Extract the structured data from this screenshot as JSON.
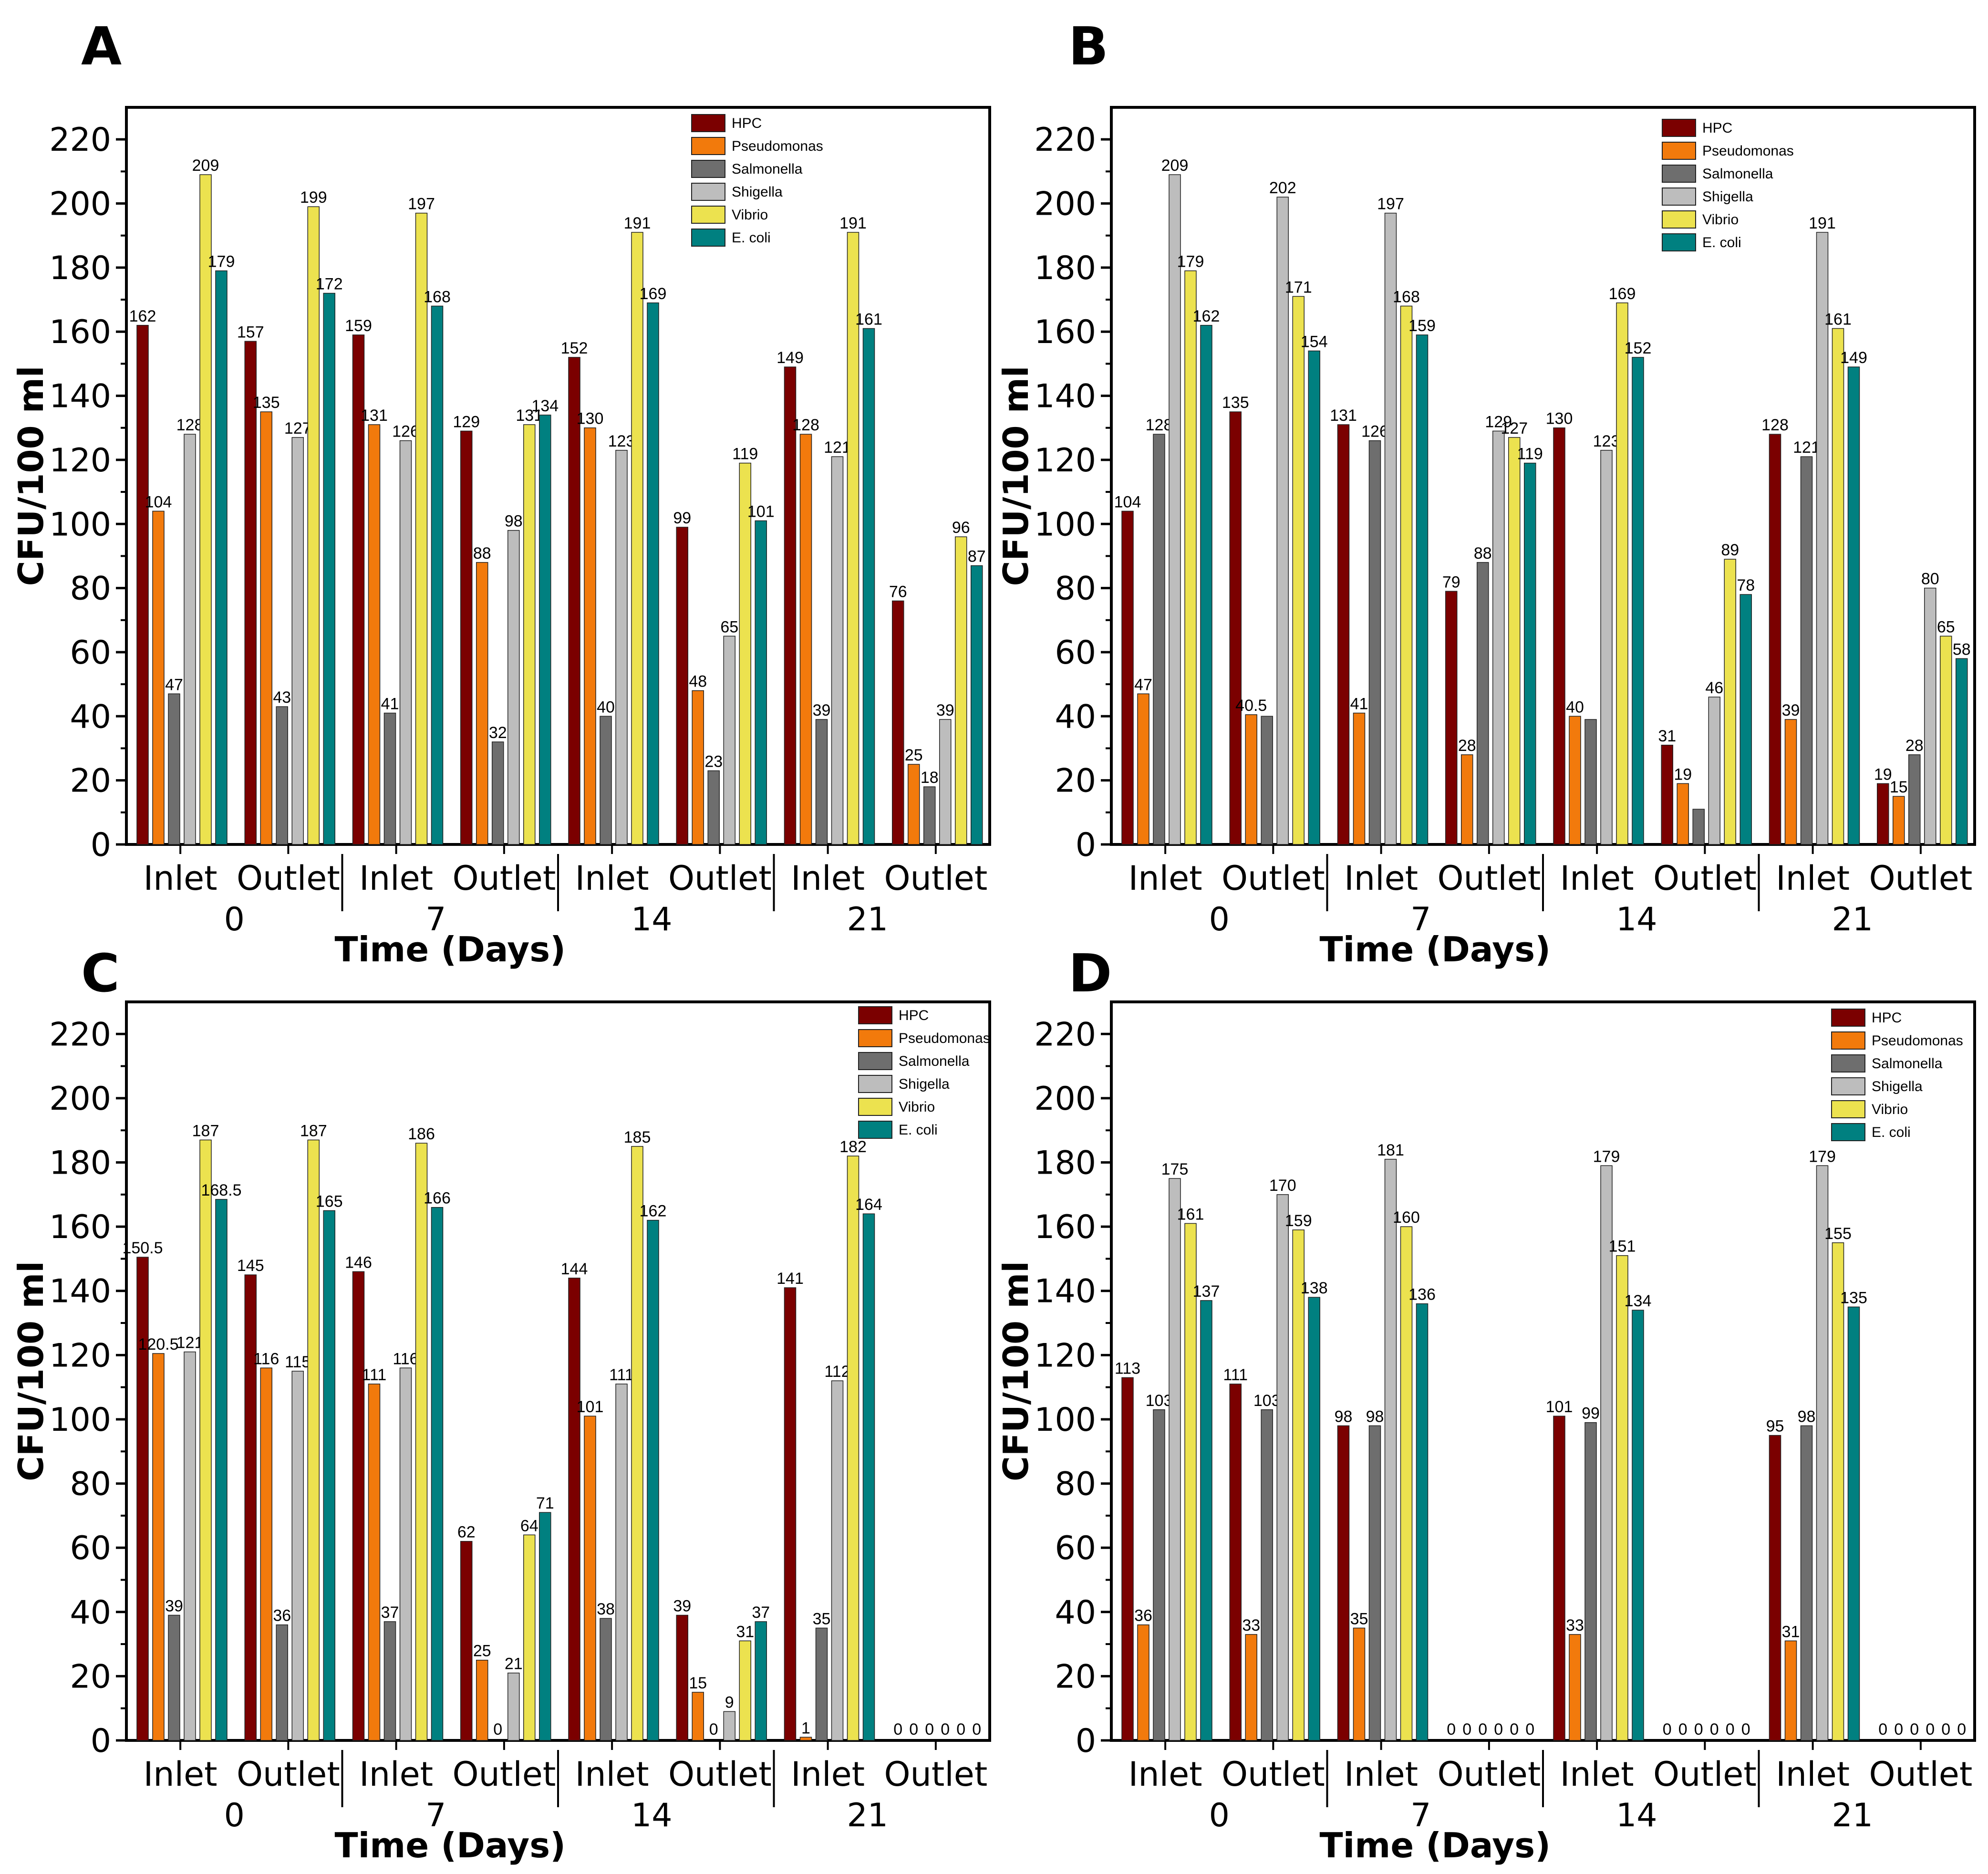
{
  "figure": {
    "xlabel": "Time (Days)",
    "ylabel": "CFU/100 ml",
    "groups": [
      "Inlet",
      "Outlet",
      "Inlet",
      "Outlet",
      "Inlet",
      "Outlet",
      "Inlet",
      "Outlet"
    ],
    "days": [
      "0",
      "7",
      "14",
      "21"
    ],
    "yticks": [
      "0",
      "20",
      "40",
      "60",
      "80",
      "100",
      "120",
      "140",
      "160",
      "180",
      "200",
      "220"
    ]
  },
  "colors": {
    "HPC": "#7b0000",
    "Pseudomonas": "#f27a0c",
    "Salmonella": "#6e6e6e",
    "Shigella": "#bdbdbd",
    "Vibrio": "#ece24f",
    "E. coli": "#008080"
  },
  "chart_data": [
    {
      "type": "bar",
      "panel": "A",
      "title": "",
      "xlabel": "Time (Days)",
      "ylabel": "CFU/100 ml",
      "ylim": [
        0,
        230
      ],
      "categories": [
        "0 Inlet",
        "0 Outlet",
        "7 Inlet",
        "7 Outlet",
        "14 Inlet",
        "14 Outlet",
        "21 Inlet",
        "21 Outlet"
      ],
      "series": [
        {
          "name": "HPC",
          "values": [
            162,
            157,
            159,
            129,
            152,
            99,
            149,
            76
          ],
          "labels": [
            "162",
            "157",
            "159",
            "129",
            "152",
            "99",
            "149",
            "76"
          ]
        },
        {
          "name": "Pseudomonas",
          "values": [
            104,
            135,
            131,
            88,
            130,
            48,
            128,
            25
          ],
          "labels": [
            "104",
            "135",
            "131",
            "88",
            "130",
            "48",
            "128",
            "25"
          ]
        },
        {
          "name": "Salmonella",
          "values": [
            47,
            43,
            41,
            32,
            40,
            23,
            39,
            18
          ],
          "labels": [
            "47",
            "43",
            "41",
            "32",
            "40",
            "23",
            "39",
            "18"
          ]
        },
        {
          "name": "Shigella",
          "values": [
            128,
            127,
            126,
            98,
            123,
            65,
            121,
            39
          ],
          "labels": [
            "128",
            "127",
            "126",
            "98",
            "123",
            "65",
            "121",
            "39"
          ]
        },
        {
          "name": "Vibrio",
          "values": [
            209,
            199,
            197,
            131,
            191,
            119,
            191,
            96
          ],
          "labels": [
            "209",
            "199",
            "197",
            "131",
            "191",
            "119",
            "191",
            "96"
          ]
        },
        {
          "name": "E. coli",
          "values": [
            179,
            172,
            168,
            134,
            169,
            101,
            161,
            87
          ],
          "labels": [
            "179",
            "172",
            "168",
            "134",
            "169",
            "101",
            "161",
            "87"
          ]
        }
      ]
    },
    {
      "type": "bar",
      "panel": "B",
      "title": "",
      "xlabel": "Time (Days)",
      "ylabel": "CFU/100 ml",
      "ylim": [
        0,
        230
      ],
      "categories": [
        "0 Inlet",
        "0 Outlet",
        "7 Inlet",
        "7 Outlet",
        "14 Inlet",
        "14 Outlet",
        "21 Inlet",
        "21 Outlet"
      ],
      "series": [
        {
          "name": "HPC",
          "values": [
            104,
            135,
            131,
            79,
            130,
            31,
            128,
            19
          ],
          "labels": [
            "104",
            "135",
            "131",
            "79",
            "130",
            "31",
            "128",
            "19"
          ]
        },
        {
          "name": "Pseudomonas",
          "values": [
            47,
            40.5,
            41,
            28,
            40,
            19,
            39,
            15
          ],
          "labels": [
            "47",
            "40.5",
            "41",
            "28",
            "40",
            "19",
            "39",
            "15"
          ]
        },
        {
          "name": "Salmonella",
          "values": [
            128,
            40,
            126,
            88,
            39,
            11,
            121,
            28
          ],
          "labels": [
            "128",
            "",
            "126",
            "88",
            "",
            "",
            "121",
            "28"
          ]
        },
        {
          "name": "Shigella",
          "values": [
            209,
            202,
            197,
            129,
            123,
            46,
            191,
            80
          ],
          "labels": [
            "209",
            "202",
            "197",
            "129",
            "123",
            "46",
            "191",
            "80"
          ]
        },
        {
          "name": "Vibrio",
          "values": [
            179,
            171,
            168,
            127,
            169,
            89,
            161,
            65
          ],
          "labels": [
            "179",
            "171",
            "168",
            "127",
            "169",
            "89",
            "161",
            "65"
          ]
        },
        {
          "name": "E. coli",
          "values": [
            162,
            154,
            159,
            119,
            152,
            78,
            149,
            58
          ],
          "labels": [
            "162",
            "154",
            "159",
            "119",
            "152",
            "78",
            "149",
            "58"
          ]
        }
      ]
    },
    {
      "type": "bar",
      "panel": "C",
      "title": "",
      "xlabel": "Time (Days)",
      "ylabel": "CFU/100 ml",
      "ylim": [
        0,
        230
      ],
      "categories": [
        "0 Inlet",
        "0 Outlet",
        "7 Inlet",
        "7 Outlet",
        "14 Inlet",
        "14 Outlet",
        "21 Inlet",
        "21 Outlet"
      ],
      "series": [
        {
          "name": "HPC",
          "values": [
            150.5,
            145,
            146,
            62,
            144,
            39,
            141,
            0
          ],
          "labels": [
            "150.5",
            "145",
            "146",
            "62",
            "144",
            "39",
            "141",
            "0"
          ]
        },
        {
          "name": "Pseudomonas",
          "values": [
            120.5,
            116,
            111,
            25,
            101,
            15,
            1,
            0
          ],
          "labels": [
            "120.5",
            "116",
            "111",
            "25",
            "101",
            "15",
            "1",
            "0"
          ]
        },
        {
          "name": "Salmonella",
          "values": [
            39,
            36,
            37,
            0,
            38,
            0,
            35,
            0
          ],
          "labels": [
            "39",
            "36",
            "37",
            "0",
            "38",
            "0",
            "35",
            "0"
          ]
        },
        {
          "name": "Shigella",
          "values": [
            121,
            115,
            116,
            21,
            111,
            9,
            112,
            0
          ],
          "labels": [
            "121",
            "115",
            "116",
            "21",
            "111",
            "9",
            "112",
            "0"
          ]
        },
        {
          "name": "Vibrio",
          "values": [
            187,
            187,
            186,
            64,
            185,
            31,
            182,
            0
          ],
          "labels": [
            "187",
            "187",
            "186",
            "64",
            "185",
            "31",
            "182",
            "0"
          ]
        },
        {
          "name": "E. coli",
          "values": [
            168.5,
            165,
            166,
            71,
            162,
            37,
            164,
            0
          ],
          "labels": [
            "168.5",
            "165",
            "166",
            "71",
            "162",
            "37",
            "164",
            "0"
          ]
        }
      ]
    },
    {
      "type": "bar",
      "panel": "D",
      "title": "",
      "xlabel": "Time (Days)",
      "ylabel": "CFU/100 ml",
      "ylim": [
        0,
        230
      ],
      "categories": [
        "0 Inlet",
        "0 Outlet",
        "7 Inlet",
        "7 Outlet",
        "14 Inlet",
        "14 Outlet",
        "21 Inlet",
        "21 Outlet"
      ],
      "series": [
        {
          "name": "HPC",
          "values": [
            113,
            111,
            98,
            0,
            101,
            0,
            95,
            0
          ],
          "labels": [
            "113",
            "111",
            "98",
            "0",
            "101",
            "0",
            "95",
            "0"
          ]
        },
        {
          "name": "Pseudomonas",
          "values": [
            36,
            33,
            35,
            0,
            33,
            0,
            31,
            0
          ],
          "labels": [
            "36",
            "33",
            "35",
            "0",
            "33",
            "0",
            "31",
            "0"
          ]
        },
        {
          "name": "Salmonella",
          "values": [
            103,
            103,
            98,
            0,
            99,
            0,
            98,
            0
          ],
          "labels": [
            "103",
            "103",
            "98",
            "0",
            "99",
            "0",
            "98",
            "0"
          ]
        },
        {
          "name": "Shigella",
          "values": [
            175,
            170,
            181,
            0,
            179,
            0,
            179,
            0
          ],
          "labels": [
            "175",
            "170",
            "181",
            "0",
            "179",
            "0",
            "179",
            "0"
          ]
        },
        {
          "name": "Vibrio",
          "values": [
            161,
            159,
            160,
            0,
            151,
            0,
            155,
            0
          ],
          "labels": [
            "161",
            "159",
            "160",
            "0",
            "151",
            "0",
            "155",
            "0"
          ]
        },
        {
          "name": "E. coli",
          "values": [
            137,
            138,
            136,
            0,
            134,
            0,
            135,
            0
          ],
          "labels": [
            "137",
            "138",
            "136",
            "0",
            "134",
            "0",
            "135",
            "0"
          ]
        }
      ]
    }
  ]
}
